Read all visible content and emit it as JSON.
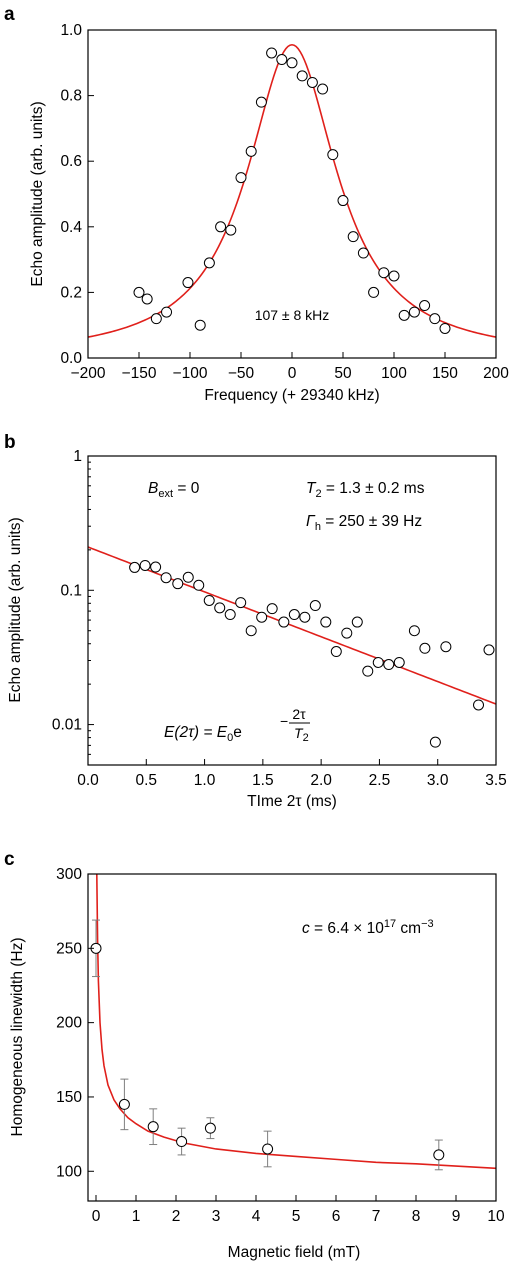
{
  "colors": {
    "fit_line": "#e0201b",
    "axes": "#000000",
    "marker_face": "#ffffff",
    "error_bar": "#7f7f7f"
  },
  "chart_data": [
    {
      "panel": "a",
      "type": "scatter",
      "xlabel": "Frequency (+ 29340 kHz)",
      "ylabel": "Echo amplitude (arb. units)",
      "xlim": [
        -200,
        200
      ],
      "ylim": [
        0.0,
        1.0
      ],
      "x_ticks": [
        -200,
        -150,
        -100,
        -50,
        0,
        50,
        100,
        150,
        200
      ],
      "x_tick_labels": [
        "−200",
        "−150",
        "−100",
        "−50",
        "0",
        "50",
        "100",
        "150",
        "200"
      ],
      "y_ticks": [
        0.0,
        0.2,
        0.4,
        0.6,
        0.8,
        1.0
      ],
      "y_tick_labels": [
        "0.0",
        "0.2",
        "0.4",
        "0.6",
        "0.8",
        "1.0"
      ],
      "annotation": "107 ± 8 kHz",
      "series": [
        {
          "style": "open-circle",
          "x": [
            -150,
            -142,
            -133,
            -123,
            -102,
            -90,
            -81,
            -70,
            -60,
            -50,
            -40,
            -30,
            -20,
            -10,
            0,
            10,
            20,
            30,
            40,
            50,
            60,
            70,
            80,
            90,
            100,
            110,
            120,
            130,
            140,
            150
          ],
          "y": [
            0.2,
            0.18,
            0.12,
            0.14,
            0.23,
            0.1,
            0.29,
            0.4,
            0.39,
            0.55,
            0.63,
            0.78,
            0.93,
            0.91,
            0.9,
            0.86,
            0.84,
            0.82,
            0.62,
            0.48,
            0.37,
            0.32,
            0.2,
            0.26,
            0.25,
            0.13,
            0.14,
            0.16,
            0.12,
            0.09
          ]
        },
        {
          "style": "line",
          "fit": "lorentzian",
          "amplitude": 0.955,
          "baseline": 0.0,
          "center": 0,
          "fwhm": 107
        }
      ]
    },
    {
      "panel": "b",
      "type": "scatter",
      "y_scale": "log",
      "xlabel": "TIme 2τ (ms)",
      "ylabel": "Echo amplitude (arb. units)",
      "xlim": [
        0.0,
        3.5
      ],
      "ylim": [
        0.005,
        1
      ],
      "x_ticks": [
        0.0,
        0.5,
        1.0,
        1.5,
        2.0,
        2.5,
        3.0,
        3.5
      ],
      "x_tick_labels": [
        "0.0",
        "0.5",
        "1.0",
        "1.5",
        "2.0",
        "2.5",
        "3.0",
        "3.5"
      ],
      "y_ticks": [
        0.01,
        0.1,
        1
      ],
      "y_tick_labels": [
        "0.01",
        "0.1",
        "1"
      ],
      "annotations": {
        "bext": {
          "main": "B",
          "sub": "ext",
          "rest": " = 0"
        },
        "t2": {
          "main": "T",
          "sub": "2",
          "rest": " = 1.3 ± 0.2 ms"
        },
        "gamma": {
          "main": "Γ",
          "sub": "h",
          "rest": " = 250 ± 39 Hz"
        },
        "formula": {
          "lhs": "E(2τ) = E",
          "sub0": "0",
          "base": "e",
          "minus": "−",
          "num": "2τ",
          "den": "T",
          "den_sub": "2"
        }
      },
      "series": [
        {
          "style": "open-circle",
          "x": [
            0.4,
            0.49,
            0.58,
            0.67,
            0.77,
            0.86,
            0.95,
            1.04,
            1.13,
            1.22,
            1.31,
            1.4,
            1.49,
            1.58,
            1.68,
            1.77,
            1.86,
            1.95,
            2.04,
            2.13,
            2.22,
            2.31,
            2.4,
            2.49,
            2.58,
            2.67,
            2.8,
            2.89,
            2.98,
            3.07,
            3.35,
            3.44
          ],
          "y": [
            0.148,
            0.153,
            0.149,
            0.124,
            0.112,
            0.125,
            0.109,
            0.084,
            0.074,
            0.066,
            0.081,
            0.05,
            0.063,
            0.073,
            0.058,
            0.066,
            0.063,
            0.077,
            0.058,
            0.035,
            0.048,
            0.058,
            0.025,
            0.029,
            0.028,
            0.029,
            0.05,
            0.037,
            0.0074,
            0.038,
            0.014,
            0.036
          ]
        },
        {
          "style": "line",
          "fit": "exponential",
          "E0": 0.21,
          "T2": 1.3
        }
      ]
    },
    {
      "panel": "c",
      "type": "scatter",
      "xlabel": "Magnetic field (mT)",
      "ylabel": "Homogeneous linewidth (Hz)",
      "xlim": [
        -0.2,
        10
      ],
      "ylim": [
        80,
        300
      ],
      "x_ticks": [
        0,
        1,
        2,
        3,
        4,
        5,
        6,
        7,
        8,
        9,
        10
      ],
      "x_tick_labels": [
        "0",
        "1",
        "2",
        "3",
        "4",
        "5",
        "6",
        "7",
        "8",
        "9",
        "10"
      ],
      "y_ticks": [
        100,
        150,
        200,
        250,
        300
      ],
      "y_tick_labels": [
        "100",
        "150",
        "200",
        "250",
        "300"
      ],
      "annotation": {
        "pre": "c",
        "mid": " = 6.4 × 10",
        "exp": "17",
        "unit": " cm",
        "unit_exp": "−3"
      },
      "series": [
        {
          "style": "open-circle-errorbar",
          "x": [
            0.0,
            0.71,
            1.43,
            2.14,
            2.86,
            4.29,
            8.57
          ],
          "y": [
            250,
            145,
            130,
            120,
            129,
            115,
            111
          ],
          "error": [
            19,
            17,
            12,
            9,
            7,
            12,
            10
          ]
        },
        {
          "style": "line",
          "fit": "decay-curve",
          "x": [
            0.02,
            0.04,
            0.06,
            0.1,
            0.15,
            0.2,
            0.3,
            0.45,
            0.6,
            0.8,
            1.0,
            1.3,
            1.7,
            2.2,
            3.0,
            4.0,
            5.0,
            6.0,
            7.0,
            8.0,
            9.0,
            10.0
          ],
          "y": [
            300,
            255,
            228,
            200,
            182,
            171,
            158,
            148,
            142,
            136,
            132,
            127,
            123,
            119,
            115,
            112,
            110,
            108,
            106,
            105,
            103.5,
            102
          ]
        }
      ]
    }
  ]
}
